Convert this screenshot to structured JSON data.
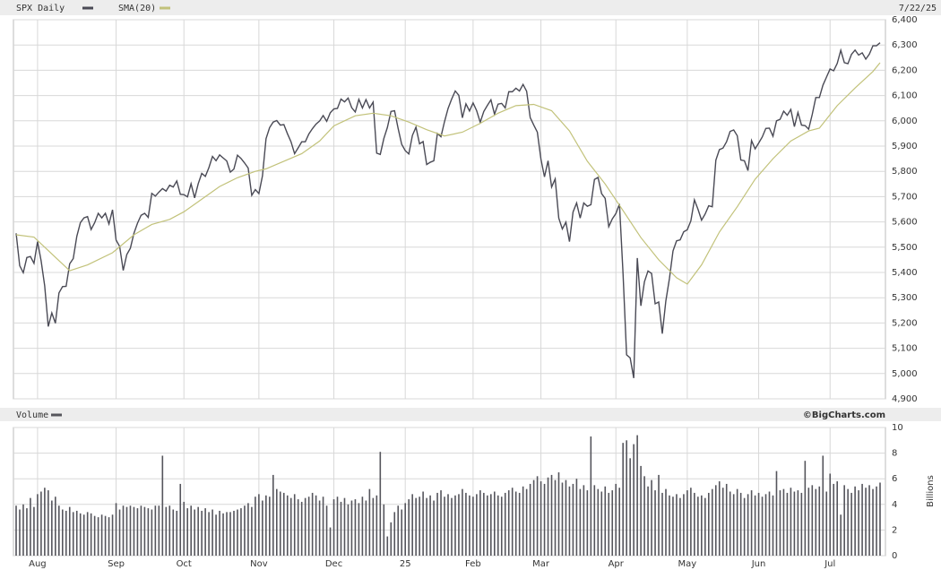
{
  "chart_data": [
    {
      "type": "line",
      "date_label": "7/22/25",
      "xlim": [
        0,
        242
      ],
      "ylim": [
        4900,
        6400
      ],
      "yticks": [
        {
          "value": 4900,
          "label": "4,900"
        },
        {
          "value": 5000,
          "label": "5,000"
        },
        {
          "value": 5100,
          "label": "5,100"
        },
        {
          "value": 5200,
          "label": "5,200"
        },
        {
          "value": 5300,
          "label": "5,300"
        },
        {
          "value": 5400,
          "label": "5,400"
        },
        {
          "value": 5500,
          "label": "5,500"
        },
        {
          "value": 5600,
          "label": "5,600"
        },
        {
          "value": 5700,
          "label": "5,700"
        },
        {
          "value": 5800,
          "label": "5,800"
        },
        {
          "value": 5900,
          "label": "5,900"
        },
        {
          "value": 6000,
          "label": "6,000"
        },
        {
          "value": 6100,
          "label": "6,100"
        },
        {
          "value": 6200,
          "label": "6,200"
        },
        {
          "value": 6300,
          "label": "6,300"
        },
        {
          "value": 6400,
          "label": "6,400"
        }
      ],
      "grid": true,
      "series": [
        {
          "name": "SPX Daily",
          "color": "#4a4a55",
          "values": [
            5555,
            5427,
            5399,
            5459,
            5463,
            5436,
            5522,
            5446,
            5347,
            5186,
            5240,
            5199,
            5319,
            5344,
            5345,
            5434,
            5455,
            5543,
            5597,
            5616,
            5621,
            5570,
            5597,
            5634,
            5616,
            5634,
            5592,
            5648,
            5528,
            5503,
            5408,
            5471,
            5496,
            5555,
            5595,
            5626,
            5634,
            5618,
            5713,
            5702,
            5718,
            5732,
            5722,
            5745,
            5738,
            5762,
            5709,
            5708,
            5699,
            5751,
            5695,
            5751,
            5792,
            5780,
            5815,
            5859,
            5842,
            5865,
            5853,
            5841,
            5797,
            5809,
            5864,
            5851,
            5833,
            5813,
            5705,
            5728,
            5712,
            5782,
            5929,
            5973,
            5995,
            6001,
            5983,
            5985,
            5949,
            5917,
            5870,
            5893,
            5917,
            5917,
            5948,
            5969,
            5987,
            5999,
            6021,
            5998,
            6032,
            6047,
            6049,
            6086,
            6075,
            6090,
            6052,
            6035,
            6085,
            6051,
            6084,
            6051,
            6074,
            5872,
            5867,
            5930,
            5974,
            6037,
            6040,
            5970,
            5907,
            5882,
            5869,
            5942,
            5975,
            5909,
            5918,
            5827,
            5836,
            5842,
            5950,
            5937,
            5997,
            6049,
            6086,
            6118,
            6101,
            6012,
            6067,
            6039,
            6071,
            6040,
            5994,
            6037,
            6061,
            6083,
            6026,
            6066,
            6069,
            6051,
            6115,
            6115,
            6129,
            6118,
            6144,
            6117,
            6013,
            5983,
            5955,
            5849,
            5778,
            5842,
            5738,
            5770,
            5615,
            5572,
            5599,
            5522,
            5639,
            5675,
            5615,
            5675,
            5662,
            5668,
            5768,
            5776,
            5712,
            5693,
            5581,
            5612,
            5633,
            5671,
            5397,
            5074,
            5062,
            4982,
            5457,
            5268,
            5363,
            5406,
            5396,
            5276,
            5283,
            5158,
            5288,
            5376,
            5485,
            5525,
            5529,
            5561,
            5569,
            5604,
            5687,
            5650,
            5607,
            5631,
            5664,
            5660,
            5844,
            5886,
            5892,
            5917,
            5958,
            5964,
            5941,
            5845,
            5842,
            5803,
            5922,
            5889,
            5912,
            5936,
            5970,
            5971,
            5939,
            6000,
            6006,
            6038,
            6022,
            6045,
            5977,
            6033,
            5983,
            5981,
            5967,
            6025,
            6092,
            6092,
            6141,
            6173,
            6205,
            6198,
            6227,
            6279,
            6230,
            6226,
            6263,
            6280,
            6260,
            6269,
            6244,
            6264,
            6297,
            6297,
            6309
          ]
        },
        {
          "name": "SMA(20)",
          "color": "#c2c27a",
          "x": [
            0,
            5,
            15,
            20,
            27,
            33,
            38,
            43,
            47,
            52,
            57,
            62,
            67,
            70,
            75,
            80,
            85,
            89,
            95,
            100,
            105,
            110,
            115,
            120,
            125,
            130,
            135,
            140,
            145,
            150,
            155,
            160,
            165,
            170,
            175,
            180,
            185,
            188,
            192,
            197,
            202,
            207,
            212,
            217,
            222,
            225,
            230,
            235,
            240,
            242
          ],
          "values": [
            5549,
            5540,
            5407,
            5430,
            5478,
            5549,
            5590,
            5610,
            5640,
            5690,
            5740,
            5775,
            5800,
            5810,
            5840,
            5870,
            5920,
            5980,
            6020,
            6030,
            6020,
            5995,
            5965,
            5940,
            5955,
            5990,
            6030,
            6060,
            6065,
            6040,
            5960,
            5840,
            5750,
            5645,
            5538,
            5450,
            5379,
            5354,
            5430,
            5560,
            5660,
            5769,
            5850,
            5920,
            5960,
            5971,
            6060,
            6130,
            6195,
            6230
          ]
        }
      ]
    },
    {
      "type": "bar",
      "title": "Volume",
      "source": "©BigCharts.com",
      "y_label": "Billions",
      "xlim": [
        0,
        242
      ],
      "xticks": [
        {
          "value": 6,
          "label": "Aug"
        },
        {
          "value": 28,
          "label": "Sep"
        },
        {
          "value": 47,
          "label": "Oct"
        },
        {
          "value": 68,
          "label": "Nov"
        },
        {
          "value": 89,
          "label": "Dec"
        },
        {
          "value": 109,
          "label": "25"
        },
        {
          "value": 128,
          "label": "Feb"
        },
        {
          "value": 147,
          "label": "Mar"
        },
        {
          "value": 168,
          "label": "Apr"
        },
        {
          "value": 188,
          "label": "May"
        },
        {
          "value": 208,
          "label": "Jun"
        },
        {
          "value": 228,
          "label": "Jul"
        }
      ],
      "ylim": [
        0,
        10
      ],
      "yticks": [
        0,
        2,
        4,
        6,
        8,
        10
      ],
      "grid": true,
      "series": [
        {
          "name": "Volume",
          "color": "#55555c",
          "values": [
            3.9,
            3.6,
            4.0,
            3.7,
            4.5,
            3.8,
            4.8,
            5.0,
            5.3,
            5.1,
            4.3,
            4.6,
            3.9,
            3.6,
            3.5,
            3.8,
            3.4,
            3.5,
            3.3,
            3.2,
            3.4,
            3.3,
            3.1,
            3.0,
            3.2,
            3.1,
            3.0,
            3.2,
            4.1,
            3.6,
            3.9,
            3.8,
            3.9,
            3.8,
            3.7,
            3.9,
            3.8,
            3.7,
            3.6,
            3.9,
            3.9,
            7.8,
            3.8,
            3.9,
            3.6,
            3.5,
            5.6,
            4.2,
            3.7,
            3.9,
            3.6,
            3.8,
            3.5,
            3.7,
            3.4,
            3.6,
            3.2,
            3.5,
            3.3,
            3.4,
            3.4,
            3.5,
            3.6,
            3.7,
            3.9,
            4.1,
            3.8,
            4.6,
            4.8,
            4.3,
            4.7,
            4.6,
            6.3,
            5.2,
            5.0,
            4.9,
            4.7,
            4.5,
            4.8,
            4.4,
            4.2,
            4.5,
            4.6,
            4.9,
            4.7,
            4.3,
            4.6,
            3.9,
            2.2,
            4.4,
            4.6,
            4.2,
            4.5,
            4.0,
            4.3,
            4.4,
            4.1,
            4.6,
            4.3,
            5.2,
            4.5,
            4.7,
            8.1,
            4.0,
            1.5,
            2.6,
            3.4,
            3.9,
            3.6,
            4.1,
            4.4,
            4.8,
            4.5,
            4.6,
            5.0,
            4.5,
            4.7,
            4.3,
            4.9,
            5.1,
            4.6,
            4.8,
            4.5,
            4.7,
            4.8,
            5.2,
            4.9,
            4.7,
            4.6,
            4.8,
            5.1,
            4.9,
            4.7,
            4.8,
            5.0,
            4.7,
            4.6,
            4.9,
            5.1,
            5.3,
            5.0,
            4.9,
            5.4,
            5.2,
            5.6,
            5.9,
            6.2,
            5.8,
            5.6,
            6.1,
            6.3,
            5.9,
            6.5,
            5.7,
            5.9,
            5.4,
            5.6,
            6.0,
            5.2,
            5.5,
            5.1,
            9.3,
            5.5,
            5.2,
            5.0,
            5.4,
            4.9,
            5.1,
            5.6,
            5.3,
            8.8,
            9.0,
            7.6,
            8.7,
            9.4,
            7.0,
            6.2,
            5.4,
            5.9,
            5.1,
            6.3,
            4.9,
            5.2,
            4.7,
            4.6,
            4.8,
            4.5,
            4.8,
            5.1,
            5.3,
            4.9,
            4.6,
            4.7,
            4.5,
            4.9,
            5.2,
            5.5,
            5.8,
            5.3,
            5.6,
            5.0,
            4.8,
            5.2,
            4.9,
            4.5,
            4.8,
            5.1,
            4.7,
            4.9,
            4.6,
            4.8,
            5.0,
            4.7,
            6.6,
            5.1,
            5.2,
            4.9,
            5.3,
            5.0,
            5.1,
            4.9,
            7.4,
            5.3,
            5.5,
            5.2,
            5.4,
            7.8,
            5.0,
            6.4,
            5.6,
            5.8,
            3.2,
            5.5,
            5.2,
            4.9,
            5.4,
            5.1,
            5.6,
            5.3,
            5.5,
            5.2,
            5.4,
            5.7
          ]
        }
      ]
    }
  ]
}
